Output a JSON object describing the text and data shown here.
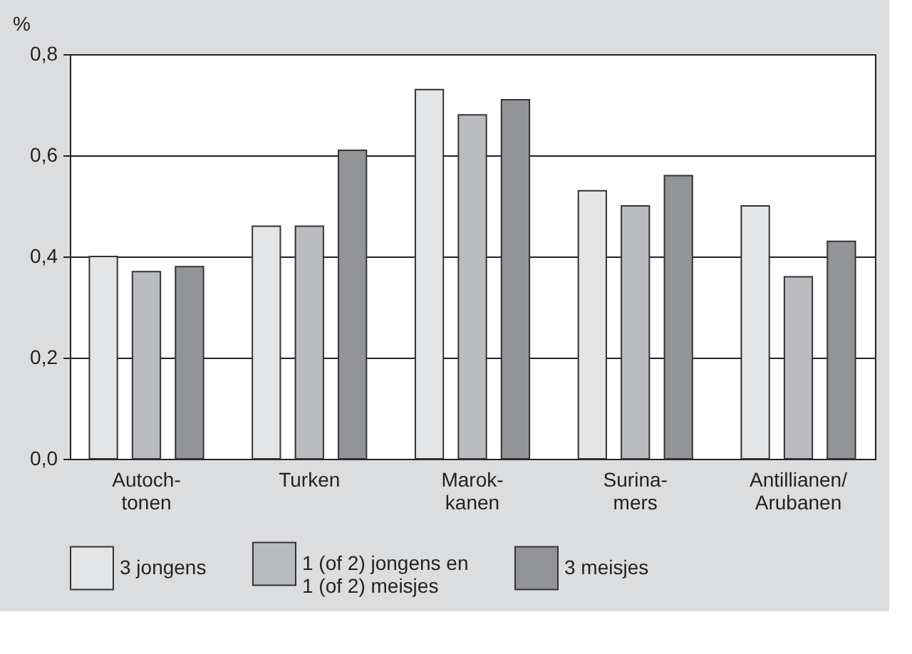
{
  "chart_data": {
    "type": "bar",
    "ylabel": "%",
    "categories": [
      "Autoch-\ntonen",
      "Turken",
      "Marok-\nkanen",
      "Surina-\nmers",
      "Antillianen/\nArubanen"
    ],
    "series": [
      {
        "name": "3 jongens",
        "color": "#e4e5e7",
        "values": [
          0.4,
          0.46,
          0.73,
          0.53,
          0.5
        ]
      },
      {
        "name": "1 (of 2) jongens en\n1 (of 2) meisjes",
        "color": "#bbbcc0",
        "values": [
          0.37,
          0.46,
          0.68,
          0.5,
          0.36
        ]
      },
      {
        "name": "3 meisjes",
        "color": "#939498",
        "values": [
          0.38,
          0.61,
          0.71,
          0.56,
          0.43
        ]
      }
    ],
    "ylim": [
      0,
      0.8
    ],
    "yticks": [
      {
        "value": 0,
        "label": "0,0"
      },
      {
        "value": 0.2,
        "label": "0,2"
      },
      {
        "value": 0.4,
        "label": "0,4"
      },
      {
        "value": 0.6,
        "label": "0,6"
      },
      {
        "value": 0.8,
        "label": "0,8"
      }
    ],
    "grid": "y",
    "legend": "bottom"
  }
}
